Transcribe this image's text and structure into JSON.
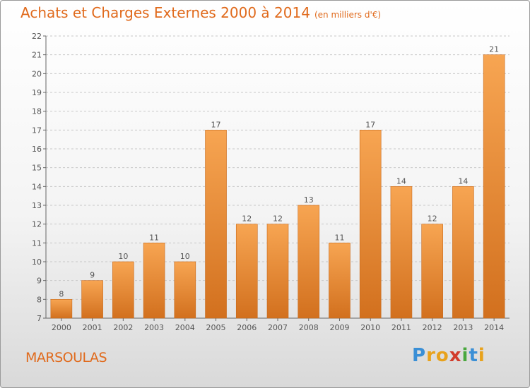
{
  "header": {
    "title": "Achats et Charges Externes 2000 à 2014",
    "unit": "(en milliers d'€)"
  },
  "footer": {
    "town": "MARSOULAS",
    "brand_letters": [
      {
        "ch": "P",
        "color": "#3a8fd6"
      },
      {
        "ch": "r",
        "color": "#e8a21c"
      },
      {
        "ch": "o",
        "color": "#e8a21c"
      },
      {
        "ch": "x",
        "color": "#d23c2b"
      },
      {
        "ch": "i",
        "color": "#4aa83f"
      },
      {
        "ch": "t",
        "color": "#3a8fd6"
      },
      {
        "ch": "i",
        "color": "#e8a21c"
      }
    ]
  },
  "chart_data": {
    "type": "bar",
    "title": "Achats et Charges Externes 2000 à 2014",
    "subtitle": "(en milliers d'€)",
    "categories": [
      "2000",
      "2001",
      "2002",
      "2003",
      "2004",
      "2005",
      "2006",
      "2007",
      "2008",
      "2009",
      "2010",
      "2011",
      "2012",
      "2013",
      "2014"
    ],
    "values": [
      8,
      9,
      10,
      11,
      10,
      17,
      12,
      12,
      13,
      11,
      17,
      14,
      12,
      14,
      21
    ],
    "data_labels": [
      "8",
      "9",
      "10",
      "11",
      "10",
      "17",
      "12",
      "12",
      "13",
      "11",
      "17",
      "14",
      "12",
      "14",
      "21"
    ],
    "yticks": [
      "7",
      "8",
      "9",
      "10",
      "11",
      "12",
      "13",
      "14",
      "15",
      "16",
      "17",
      "18",
      "19",
      "20",
      "21",
      "22"
    ],
    "ylim": [
      7,
      22
    ],
    "grid": "horizontal dashed",
    "bar_color_light": "#f7a552",
    "bar_color_dark": "#d2701e",
    "text_color": "#e06a1c"
  }
}
